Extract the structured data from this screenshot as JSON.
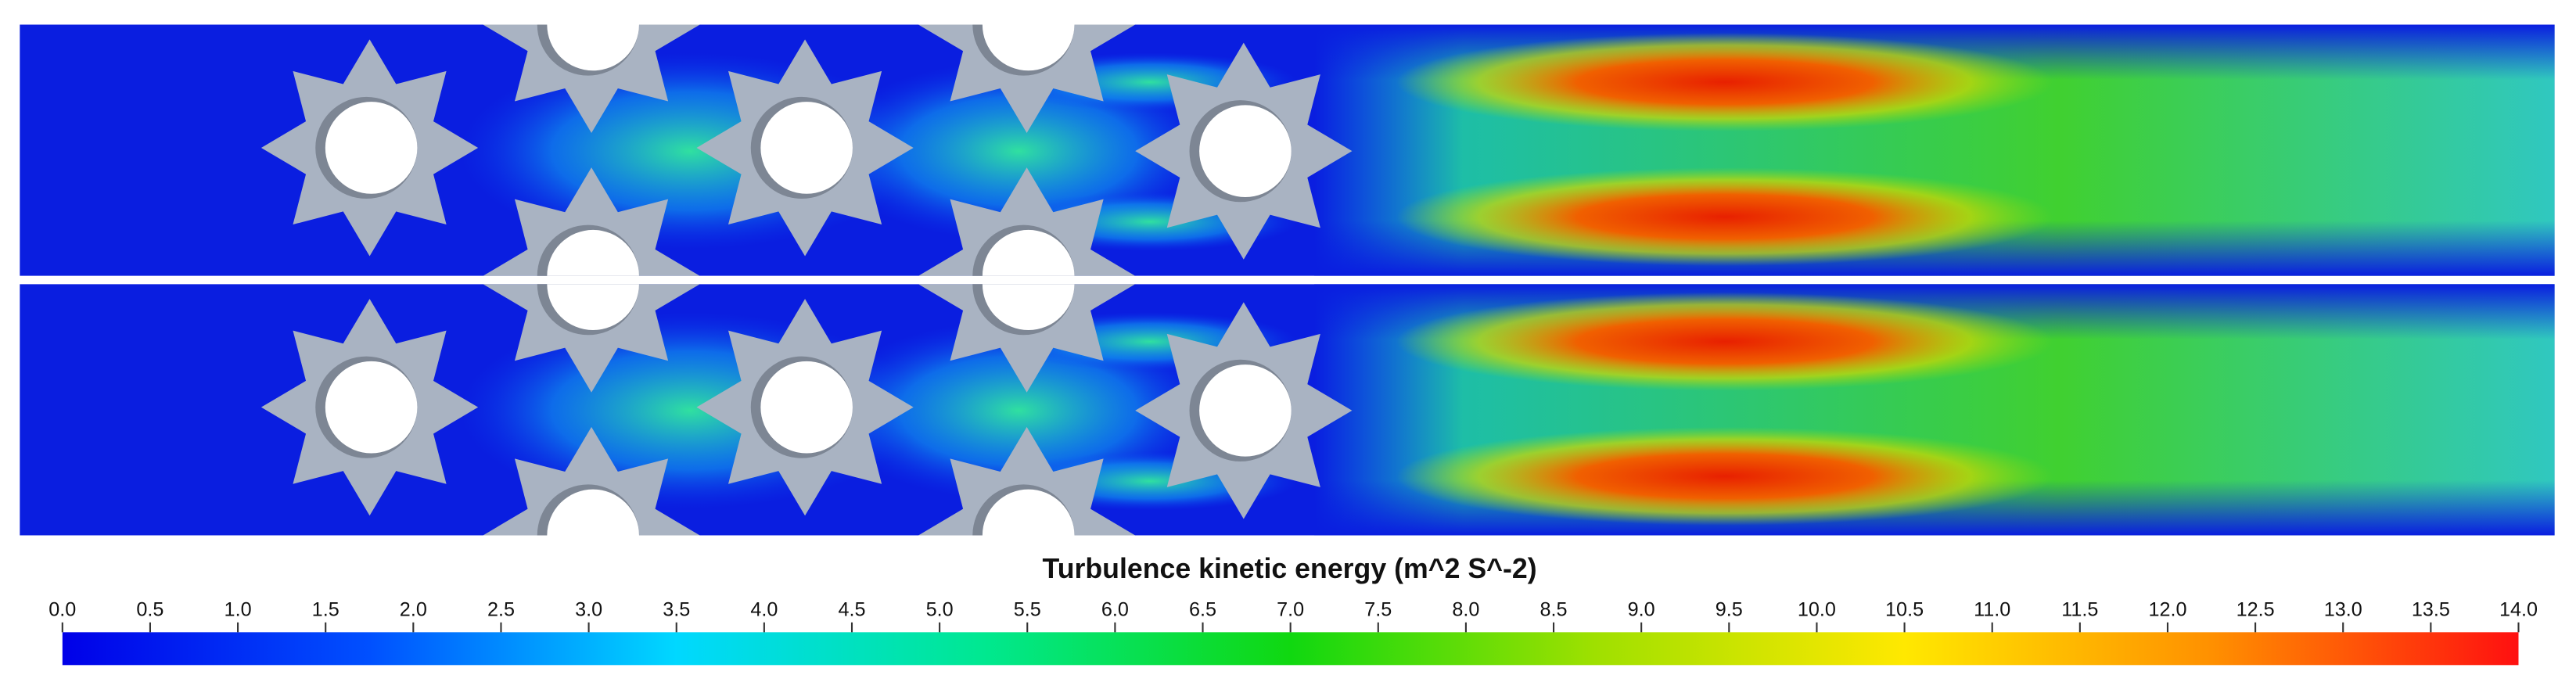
{
  "colorbar": {
    "title": "Turbulence kinetic energy (m^2 S^-2)",
    "range": [
      0,
      14
    ],
    "colormap": [
      "#0000e8",
      "#0050ff",
      "#00d8ff",
      "#00e890",
      "#10d810",
      "#a0e000",
      "#ffe800",
      "#ff9000",
      "#ff1010"
    ],
    "ticks": [
      {
        "value": 0,
        "label": "0.0"
      },
      {
        "value": 0.5,
        "label": "0.5"
      },
      {
        "value": 1,
        "label": "1.0"
      },
      {
        "value": 1.5,
        "label": "1.5"
      },
      {
        "value": 2,
        "label": "2.0"
      },
      {
        "value": 2.5,
        "label": "2.5"
      },
      {
        "value": 3,
        "label": "3.0"
      },
      {
        "value": 3.5,
        "label": "3.5"
      },
      {
        "value": 4,
        "label": "4.0"
      },
      {
        "value": 4.5,
        "label": "4.5"
      },
      {
        "value": 5,
        "label": "5.0"
      },
      {
        "value": 5.5,
        "label": "5.5"
      },
      {
        "value": 6,
        "label": "6.0"
      },
      {
        "value": 6.5,
        "label": "6.5"
      },
      {
        "value": 7,
        "label": "7.0"
      },
      {
        "value": 7.5,
        "label": "7.5"
      },
      {
        "value": 8,
        "label": "8.0"
      },
      {
        "value": 8.5,
        "label": "8.5"
      },
      {
        "value": 9,
        "label": "9.0"
      },
      {
        "value": 9.5,
        "label": "9.5"
      },
      {
        "value": 10,
        "label": "10.0"
      },
      {
        "value": 10.5,
        "label": "10.5"
      },
      {
        "value": 11,
        "label": "11.0"
      },
      {
        "value": 11.5,
        "label": "11.5"
      },
      {
        "value": 12,
        "label": "12.0"
      },
      {
        "value": 12.5,
        "label": "12.5"
      },
      {
        "value": 13,
        "label": "13.0"
      },
      {
        "value": 13.5,
        "label": "13.5"
      },
      {
        "value": 14,
        "label": "14.0"
      }
    ]
  }
}
